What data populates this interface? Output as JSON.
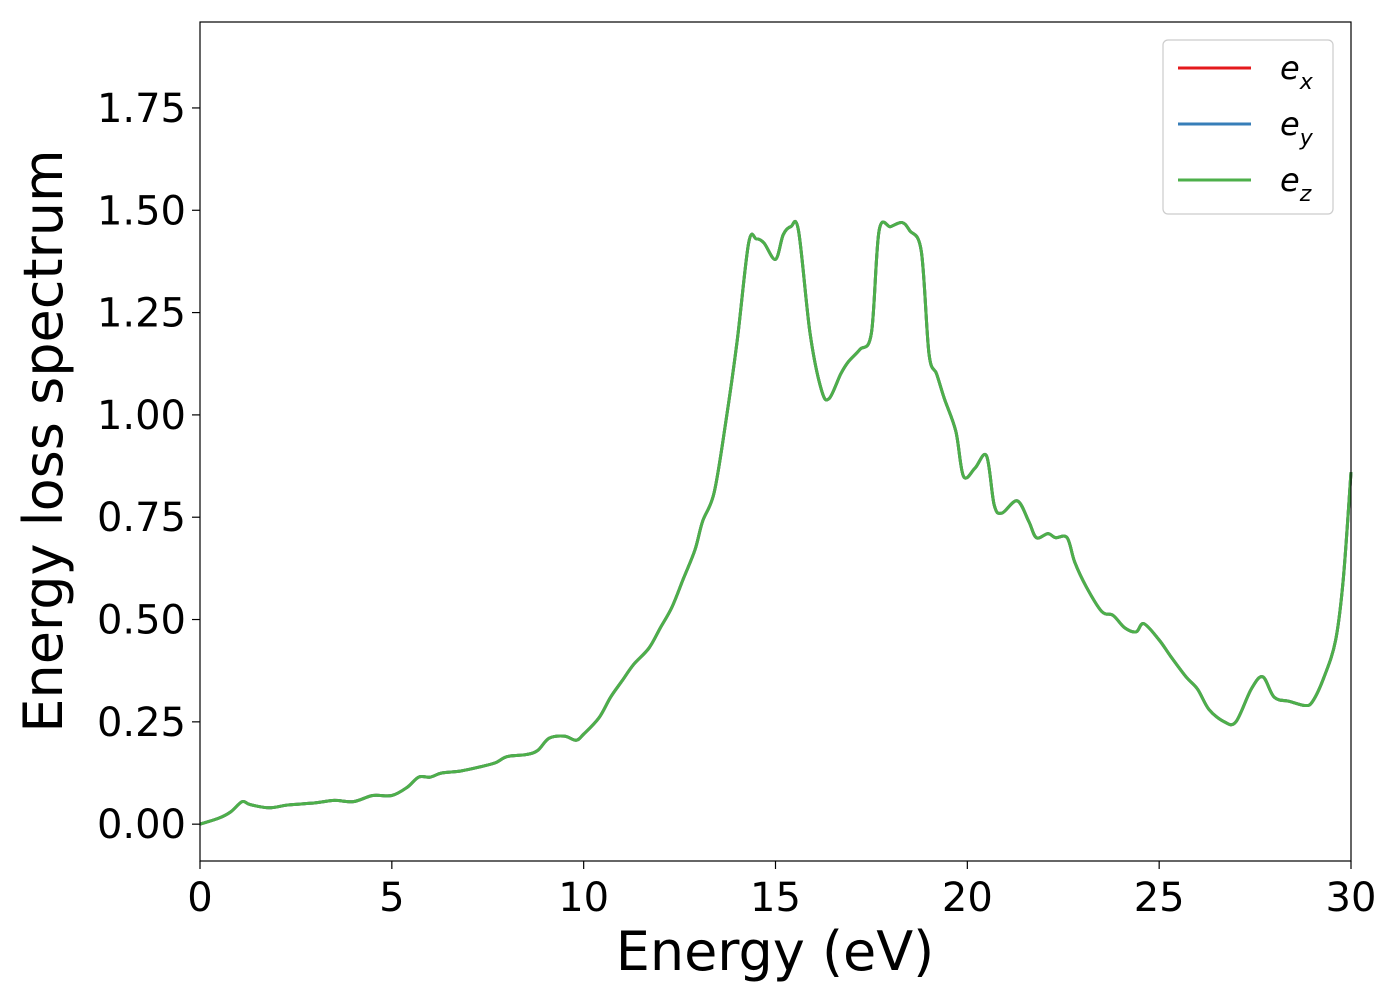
{
  "chart_data": {
    "type": "line",
    "title": "",
    "xlabel": "Energy (eV)",
    "ylabel": "Energy loss spectrum",
    "xlim": [
      0,
      30
    ],
    "ylim": [
      -0.09,
      1.96
    ],
    "xticks": [
      0,
      5,
      10,
      15,
      20,
      25,
      30
    ],
    "xtick_labels": [
      "0",
      "5",
      "10",
      "15",
      "20",
      "25",
      "30"
    ],
    "yticks": [
      0.0,
      0.25,
      0.5,
      0.75,
      1.0,
      1.25,
      1.5,
      1.75
    ],
    "ytick_labels": [
      "0.00",
      "0.25",
      "0.50",
      "0.75",
      "1.00",
      "1.25",
      "1.50",
      "1.75"
    ],
    "grid": false,
    "legend_position": "top-right",
    "x": [
      0,
      0.5,
      0.8,
      1.1,
      1.3,
      1.8,
      2.3,
      3.0,
      3.5,
      4.0,
      4.5,
      5.0,
      5.4,
      5.7,
      6.0,
      6.3,
      6.8,
      7.3,
      7.7,
      8.0,
      8.5,
      8.8,
      9.1,
      9.5,
      9.8,
      10.0,
      10.4,
      10.7,
      11.0,
      11.3,
      11.7,
      12.0,
      12.3,
      12.6,
      12.9,
      13.1,
      13.4,
      13.7,
      14.0,
      14.3,
      14.5,
      14.7,
      15.0,
      15.2,
      15.4,
      15.6,
      15.9,
      16.2,
      16.4,
      16.7,
      16.9,
      17.2,
      17.5,
      17.7,
      18.0,
      18.3,
      18.5,
      18.8,
      19.0,
      19.2,
      19.4,
      19.7,
      19.9,
      20.2,
      20.5,
      20.7,
      20.9,
      21.3,
      21.6,
      21.8,
      22.1,
      22.3,
      22.6,
      22.8,
      23.1,
      23.5,
      23.8,
      24.1,
      24.4,
      24.6,
      25.0,
      25.3,
      25.7,
      26.0,
      26.3,
      26.7,
      27.0,
      27.4,
      27.7,
      28.0,
      28.4,
      28.8,
      29.0,
      29.3,
      29.6,
      29.8,
      30.0
    ],
    "series": [
      {
        "name": "e_x",
        "color": "#e41a1c",
        "values": [
          0.0,
          0.015,
          0.03,
          0.055,
          0.048,
          0.04,
          0.047,
          0.052,
          0.058,
          0.055,
          0.07,
          0.07,
          0.09,
          0.115,
          0.115,
          0.125,
          0.13,
          0.14,
          0.15,
          0.165,
          0.17,
          0.18,
          0.21,
          0.215,
          0.205,
          0.22,
          0.26,
          0.31,
          0.35,
          0.39,
          0.43,
          0.48,
          0.53,
          0.6,
          0.67,
          0.74,
          0.81,
          0.98,
          1.18,
          1.42,
          1.43,
          1.42,
          1.38,
          1.44,
          1.46,
          1.45,
          1.2,
          1.06,
          1.04,
          1.1,
          1.13,
          1.16,
          1.2,
          1.45,
          1.46,
          1.47,
          1.45,
          1.4,
          1.15,
          1.1,
          1.04,
          0.96,
          0.85,
          0.87,
          0.9,
          0.78,
          0.76,
          0.79,
          0.74,
          0.7,
          0.71,
          0.7,
          0.7,
          0.64,
          0.58,
          0.52,
          0.51,
          0.48,
          0.47,
          0.49,
          0.45,
          0.41,
          0.36,
          0.33,
          0.28,
          0.25,
          0.25,
          0.33,
          0.36,
          0.31,
          0.3,
          0.29,
          0.3,
          0.36,
          0.45,
          0.6,
          0.86
        ]
      },
      {
        "name": "e_y",
        "color": "#377eb8",
        "values": [
          0.0,
          0.015,
          0.03,
          0.055,
          0.048,
          0.04,
          0.047,
          0.052,
          0.058,
          0.055,
          0.07,
          0.07,
          0.09,
          0.115,
          0.115,
          0.125,
          0.13,
          0.14,
          0.15,
          0.165,
          0.17,
          0.18,
          0.21,
          0.215,
          0.205,
          0.22,
          0.26,
          0.31,
          0.35,
          0.39,
          0.43,
          0.48,
          0.53,
          0.6,
          0.67,
          0.74,
          0.81,
          0.98,
          1.18,
          1.42,
          1.43,
          1.42,
          1.38,
          1.44,
          1.46,
          1.45,
          1.2,
          1.06,
          1.04,
          1.1,
          1.13,
          1.16,
          1.2,
          1.45,
          1.46,
          1.47,
          1.45,
          1.4,
          1.15,
          1.1,
          1.04,
          0.96,
          0.85,
          0.87,
          0.9,
          0.78,
          0.76,
          0.79,
          0.74,
          0.7,
          0.71,
          0.7,
          0.7,
          0.64,
          0.58,
          0.52,
          0.51,
          0.48,
          0.47,
          0.49,
          0.45,
          0.41,
          0.36,
          0.33,
          0.28,
          0.25,
          0.25,
          0.33,
          0.36,
          0.31,
          0.3,
          0.29,
          0.3,
          0.36,
          0.45,
          0.6,
          0.86
        ]
      },
      {
        "name": "e_z",
        "color": "#4daf4a",
        "values": [
          0.0,
          0.015,
          0.03,
          0.055,
          0.048,
          0.04,
          0.047,
          0.052,
          0.058,
          0.055,
          0.07,
          0.07,
          0.09,
          0.115,
          0.115,
          0.125,
          0.13,
          0.14,
          0.15,
          0.165,
          0.17,
          0.18,
          0.21,
          0.215,
          0.205,
          0.22,
          0.26,
          0.31,
          0.35,
          0.39,
          0.43,
          0.48,
          0.53,
          0.6,
          0.67,
          0.74,
          0.81,
          0.98,
          1.18,
          1.42,
          1.43,
          1.42,
          1.38,
          1.44,
          1.46,
          1.45,
          1.2,
          1.06,
          1.04,
          1.1,
          1.13,
          1.16,
          1.2,
          1.45,
          1.46,
          1.47,
          1.45,
          1.4,
          1.15,
          1.1,
          1.04,
          0.96,
          0.85,
          0.87,
          0.9,
          0.78,
          0.76,
          0.79,
          0.74,
          0.7,
          0.71,
          0.7,
          0.7,
          0.64,
          0.58,
          0.52,
          0.51,
          0.48,
          0.47,
          0.49,
          0.45,
          0.41,
          0.36,
          0.33,
          0.28,
          0.25,
          0.25,
          0.33,
          0.36,
          0.31,
          0.3,
          0.29,
          0.3,
          0.36,
          0.45,
          0.6,
          0.86
        ]
      }
    ],
    "legend": [
      {
        "base": "e",
        "sub": "x",
        "color": "#e41a1c"
      },
      {
        "base": "e",
        "sub": "y",
        "color": "#377eb8"
      },
      {
        "base": "e",
        "sub": "z",
        "color": "#4daf4a"
      }
    ]
  }
}
